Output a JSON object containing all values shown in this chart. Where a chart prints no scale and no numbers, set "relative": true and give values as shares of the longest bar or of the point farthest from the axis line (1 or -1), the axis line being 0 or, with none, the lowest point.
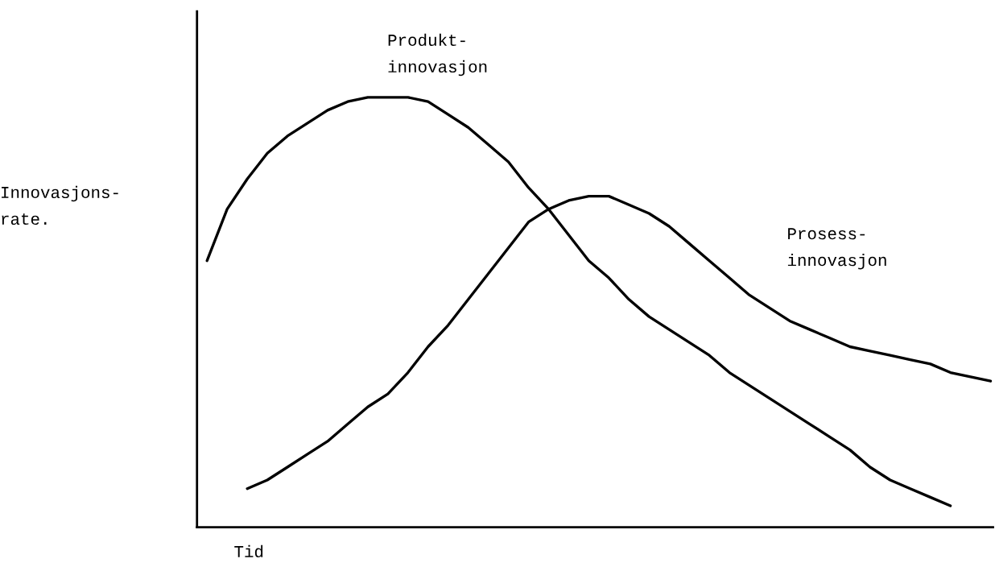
{
  "chart_data": {
    "type": "line",
    "relative": true,
    "xlabel": "Tid",
    "ylabel": "Innovasjons-\nrate.",
    "tick_labels": false,
    "legend": false,
    "marker": "none",
    "line_style": "solid",
    "categories": [
      null,
      null,
      null,
      null,
      null,
      null,
      null,
      null,
      null,
      null,
      null,
      null,
      null,
      null,
      null,
      null,
      null,
      null,
      null,
      null,
      null,
      null,
      null,
      null,
      null,
      null,
      null,
      null,
      null,
      null,
      null,
      null,
      null,
      null,
      null,
      null,
      null,
      null,
      null,
      null
    ],
    "series": [
      {
        "name": "Produkt-\ninnovasjon",
        "color": "#000000",
        "values": [
          0.62,
          0.74,
          0.81,
          0.87,
          0.91,
          0.94,
          0.97,
          0.99,
          1.0,
          1.0,
          1.0,
          0.99,
          0.96,
          0.93,
          0.89,
          0.85,
          0.79,
          0.74,
          0.68,
          0.62,
          0.58,
          0.53,
          0.49,
          0.46,
          0.43,
          0.4,
          0.36,
          0.33,
          0.3,
          0.27,
          0.24,
          0.21,
          0.18,
          0.14,
          0.11,
          0.09,
          0.07,
          0.05,
          null,
          null
        ]
      },
      {
        "name": "Prosess-\ninnovasjon",
        "color": "#000000",
        "values": [
          null,
          null,
          0.09,
          0.11,
          0.14,
          0.17,
          0.2,
          0.24,
          0.28,
          0.31,
          0.36,
          0.42,
          0.47,
          0.53,
          0.59,
          0.65,
          0.71,
          0.74,
          0.76,
          0.77,
          0.77,
          0.75,
          0.73,
          0.7,
          0.66,
          0.62,
          0.58,
          0.54,
          0.51,
          0.48,
          0.46,
          0.44,
          0.42,
          0.41,
          0.4,
          0.39,
          0.38,
          0.36,
          0.35,
          0.34
        ]
      }
    ]
  }
}
